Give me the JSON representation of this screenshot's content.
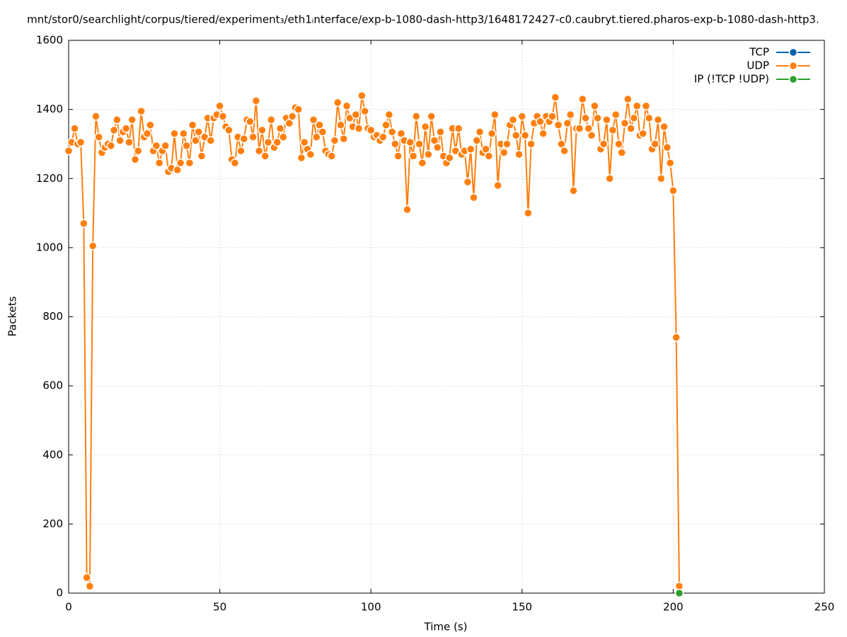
{
  "chart_data": {
    "type": "line",
    "title": "mnt/stor0/searchlight/corpus/tiered/experiment₃/eth1ᵢnterface/exp-b-1080-dash-http3/1648172427-c0.caubryt.tiered.pharos-exp-b-1080-dash-http3.",
    "x_label": "Time (s)",
    "y_label": "Packets",
    "xlim": [
      0,
      250
    ],
    "xticks": [
      0,
      50,
      100,
      150,
      200,
      250
    ],
    "ylim": [
      0,
      1600
    ],
    "yticks": [
      0,
      200,
      400,
      600,
      800,
      1000,
      1200,
      1400,
      1600
    ],
    "grid": true,
    "legend": "top-right",
    "series": [
      {
        "name": "TCP",
        "color": "#0060ad",
        "x": [],
        "values": []
      },
      {
        "name": "UDP",
        "color": "#ff7f0e",
        "x": [
          0,
          1,
          2,
          3,
          4,
          5,
          6,
          7,
          8,
          9,
          10,
          11,
          12,
          13,
          14,
          15,
          16,
          17,
          18,
          19,
          20,
          21,
          22,
          23,
          24,
          25,
          26,
          27,
          28,
          29,
          30,
          31,
          32,
          33,
          34,
          35,
          36,
          37,
          38,
          39,
          40,
          41,
          42,
          43,
          44,
          45,
          46,
          47,
          48,
          49,
          50,
          51,
          52,
          53,
          54,
          55,
          56,
          57,
          58,
          59,
          60,
          61,
          62,
          63,
          64,
          65,
          66,
          67,
          68,
          69,
          70,
          71,
          72,
          73,
          74,
          75,
          76,
          77,
          78,
          79,
          80,
          81,
          82,
          83,
          84,
          85,
          86,
          87,
          88,
          89,
          90,
          91,
          92,
          93,
          94,
          95,
          96,
          97,
          98,
          99,
          100,
          101,
          102,
          103,
          104,
          105,
          106,
          107,
          108,
          109,
          110,
          111,
          112,
          113,
          114,
          115,
          116,
          117,
          118,
          119,
          120,
          121,
          122,
          123,
          124,
          125,
          126,
          127,
          128,
          129,
          130,
          131,
          132,
          133,
          134,
          135,
          136,
          137,
          138,
          139,
          140,
          141,
          142,
          143,
          144,
          145,
          146,
          147,
          148,
          149,
          150,
          151,
          152,
          153,
          154,
          155,
          156,
          157,
          158,
          159,
          160,
          161,
          162,
          163,
          164,
          165,
          166,
          167,
          168,
          169,
          170,
          171,
          172,
          173,
          174,
          175,
          176,
          177,
          178,
          179,
          180,
          181,
          182,
          183,
          184,
          185,
          186,
          187,
          188,
          189,
          190,
          191,
          192,
          193,
          194,
          195,
          196,
          197,
          198,
          199,
          200,
          201,
          202
        ],
        "values": [
          1280,
          1305,
          1345,
          1300,
          1305,
          1070,
          45,
          20,
          1005,
          1380,
          1320,
          1275,
          1290,
          1300,
          1295,
          1340,
          1370,
          1310,
          1335,
          1345,
          1305,
          1370,
          1255,
          1280,
          1395,
          1320,
          1330,
          1355,
          1280,
          1295,
          1245,
          1280,
          1295,
          1220,
          1230,
          1330,
          1225,
          1245,
          1330,
          1295,
          1245,
          1355,
          1310,
          1335,
          1265,
          1320,
          1375,
          1310,
          1375,
          1385,
          1410,
          1380,
          1350,
          1340,
          1255,
          1245,
          1320,
          1280,
          1315,
          1370,
          1365,
          1320,
          1425,
          1280,
          1340,
          1265,
          1305,
          1370,
          1290,
          1305,
          1345,
          1320,
          1375,
          1360,
          1380,
          1405,
          1400,
          1260,
          1305,
          1285,
          1270,
          1370,
          1320,
          1355,
          1335,
          1280,
          1270,
          1265,
          1310,
          1420,
          1355,
          1315,
          1410,
          1375,
          1350,
          1385,
          1345,
          1440,
          1395,
          1345,
          1340,
          1320,
          1325,
          1310,
          1320,
          1355,
          1385,
          1335,
          1300,
          1265,
          1330,
          1310,
          1110,
          1305,
          1265,
          1380,
          1300,
          1245,
          1350,
          1270,
          1380,
          1310,
          1290,
          1335,
          1265,
          1245,
          1260,
          1345,
          1280,
          1345,
          1270,
          1280,
          1190,
          1285,
          1145,
          1310,
          1335,
          1275,
          1285,
          1265,
          1330,
          1385,
          1180,
          1300,
          1275,
          1300,
          1355,
          1370,
          1325,
          1270,
          1380,
          1325,
          1100,
          1300,
          1360,
          1380,
          1365,
          1330,
          1380,
          1365,
          1380,
          1435,
          1355,
          1300,
          1280,
          1360,
          1385,
          1165,
          1345,
          1345,
          1430,
          1375,
          1345,
          1325,
          1410,
          1375,
          1285,
          1300,
          1370,
          1200,
          1340,
          1385,
          1300,
          1275,
          1360,
          1430,
          1345,
          1375,
          1410,
          1325,
          1330,
          1410,
          1375,
          1285,
          1300,
          1370,
          1200,
          1350,
          1290,
          1245,
          1165,
          740,
          20
        ]
      },
      {
        "name": "IP (!TCP  !UDP)",
        "color": "#2ca02c",
        "x": [
          202
        ],
        "values": [
          0
        ]
      }
    ]
  }
}
